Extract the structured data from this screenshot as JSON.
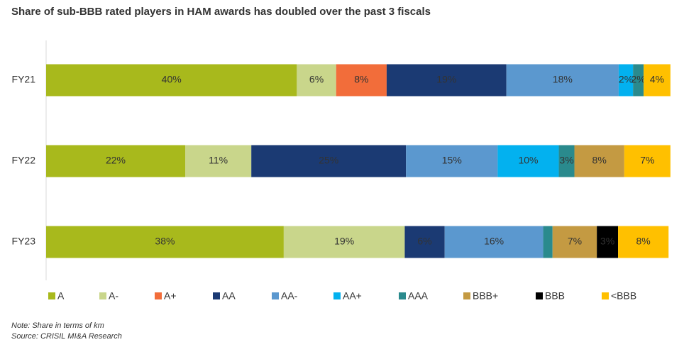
{
  "chart_data": {
    "type": "stacked-bar-horizontal",
    "title": "Share of sub-BBB rated players in HAM awards has doubled over the past 3 fiscals",
    "categories": [
      "FY21",
      "FY22",
      "FY23"
    ],
    "xlim": [
      0,
      100
    ],
    "legend": "bottom",
    "series": [
      {
        "name": "A",
        "color": "#a8b91c",
        "values": [
          40.2,
          22.3,
          38.1
        ],
        "value_labels": [
          "40%",
          "22%",
          "38%"
        ]
      },
      {
        "name": "A-",
        "color": "#c9d68b",
        "values": [
          6.3,
          10.6,
          19.4
        ],
        "value_labels": [
          "6%",
          "11%",
          "19%"
        ]
      },
      {
        "name": "A+",
        "color": "#f26d3a",
        "values": [
          8.1,
          0,
          0
        ],
        "value_labels": [
          "8%",
          null,
          null
        ]
      },
      {
        "name": "AA",
        "color": "#1b3a73",
        "values": [
          19.2,
          24.8,
          6.4
        ],
        "value_labels": [
          "19%",
          "25%",
          "6%"
        ]
      },
      {
        "name": "AA-",
        "color": "#5b98cf",
        "values": [
          18.0,
          14.7,
          15.8
        ],
        "value_labels": [
          "18%",
          "15%",
          "16%"
        ]
      },
      {
        "name": "AA+",
        "color": "#03b1ef",
        "values": [
          2.3,
          9.8,
          0
        ],
        "value_labels": [
          "2%",
          "10%",
          null
        ]
      },
      {
        "name": "AAA",
        "color": "#2a8a8d",
        "values": [
          1.7,
          2.5,
          1.5
        ],
        "value_labels": [
          "2%",
          "3%",
          null
        ]
      },
      {
        "name": "BBB+",
        "color": "#c49a42",
        "values": [
          0,
          8.0,
          7.1
        ],
        "value_labels": [
          null,
          "8%",
          "7%"
        ]
      },
      {
        "name": "BBB",
        "color": "#000000",
        "values": [
          0,
          0,
          3.4
        ],
        "value_labels": [
          null,
          null,
          "3%"
        ]
      },
      {
        "name": "<BBB",
        "color": "#ffc000",
        "values": [
          4.3,
          7.4,
          8.1
        ],
        "value_labels": [
          "4%",
          "7%",
          "8%"
        ]
      }
    ],
    "notes": [
      "Note: Share in terms of km",
      "Source: CRISIL MI&A Research"
    ]
  }
}
